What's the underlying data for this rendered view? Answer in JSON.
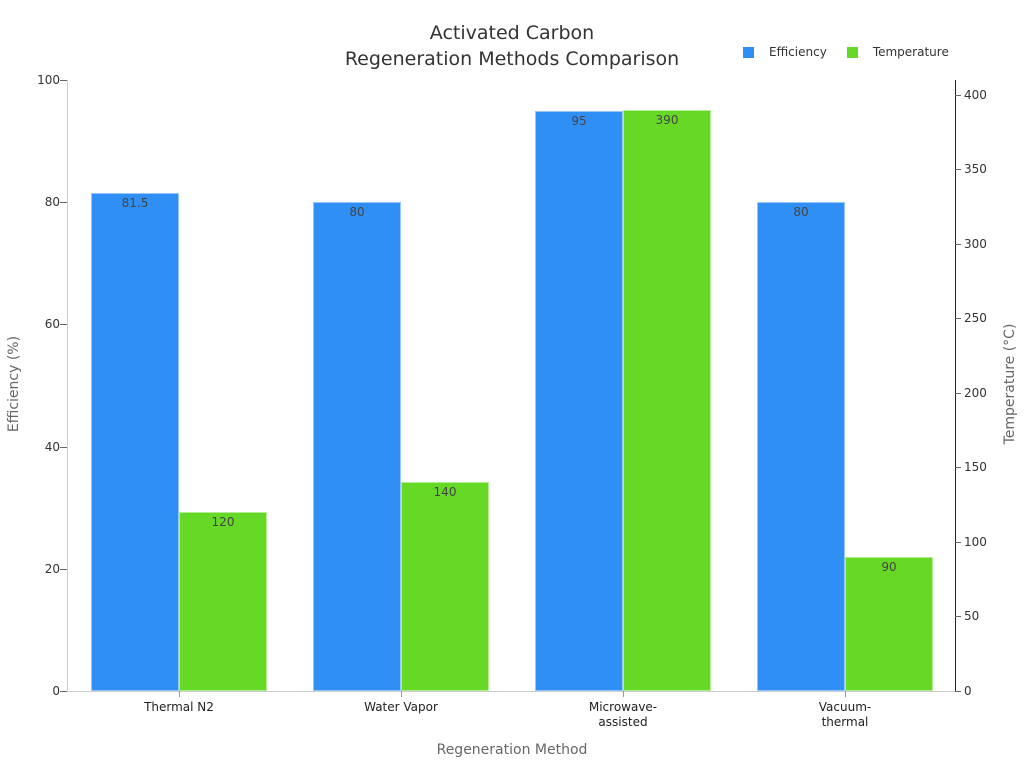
{
  "chart_data": {
    "type": "bar",
    "title": "Activated Carbon Regeneration Methods Comparison",
    "title_lines": [
      "Activated Carbon",
      "Regeneration Methods Comparison"
    ],
    "xlabel": "Regeneration Method",
    "ylabel": "Efficiency (%)",
    "y2label": "Temperature (°C)",
    "categories": [
      "Thermal N2",
      "Water Vapor",
      "Microwave-assisted",
      "Vacuum-thermal"
    ],
    "category_lines": [
      [
        "Thermal N2"
      ],
      [
        "Water Vapor"
      ],
      [
        "Microwave-",
        "assisted"
      ],
      [
        "Vacuum-",
        "thermal"
      ]
    ],
    "series": [
      {
        "name": "Efficiency",
        "axis": "left",
        "color": "#2f8ff5",
        "values": [
          81.5,
          80,
          95,
          80
        ],
        "labels": [
          "81.5",
          "80",
          "95",
          "80"
        ]
      },
      {
        "name": "Temperature",
        "axis": "right",
        "color": "#66d927",
        "values": [
          120,
          140,
          390,
          90
        ],
        "labels": [
          "120",
          "140",
          "390",
          "90"
        ]
      }
    ],
    "ylim": [
      0,
      100
    ],
    "y2lim": [
      0,
      410
    ],
    "yticks": [
      0,
      20,
      40,
      60,
      80,
      100
    ],
    "y2ticks": [
      0,
      50,
      100,
      150,
      200,
      250,
      300,
      350,
      400
    ],
    "legend_position": "top-right",
    "grid": false
  },
  "legend": {
    "items": [
      {
        "label": "Efficiency",
        "color": "#2f8ff5"
      },
      {
        "label": "Temperature",
        "color": "#66d927"
      }
    ]
  }
}
